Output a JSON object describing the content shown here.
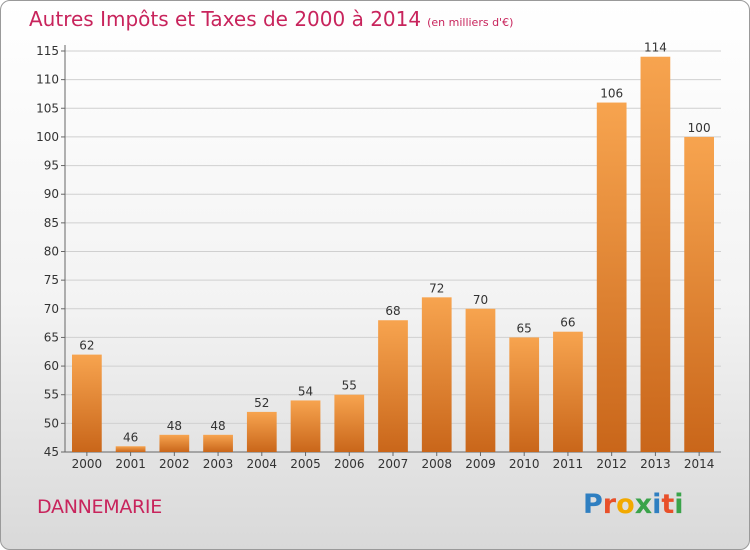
{
  "header": {
    "title": "Autres Impôts et Taxes de 2000 à 2014",
    "subtitle": "(en milliers d'€)"
  },
  "footer": {
    "commune": "DANNEMARIE",
    "logo_letters": [
      "P",
      "r",
      "o",
      "x",
      "i",
      "t",
      "i"
    ],
    "logo_colors": [
      "#2f7fc1",
      "#e8502a",
      "#f2a900",
      "#3aa34a",
      "#2f7fc1",
      "#e8502a",
      "#3aa34a"
    ]
  },
  "chart_data": {
    "type": "bar",
    "title": "Autres Impôts et Taxes de 2000 à 2014",
    "subtitle": "(en milliers d'€)",
    "xlabel": "",
    "ylabel": "",
    "categories": [
      "2000",
      "2001",
      "2002",
      "2003",
      "2004",
      "2005",
      "2006",
      "2007",
      "2008",
      "2009",
      "2010",
      "2011",
      "2012",
      "2013",
      "2014"
    ],
    "values": [
      62,
      46,
      48,
      48,
      52,
      54,
      55,
      68,
      72,
      70,
      65,
      66,
      106,
      114,
      100
    ],
    "ylim": [
      45,
      115
    ],
    "yticks": [
      45,
      50,
      55,
      60,
      65,
      70,
      75,
      80,
      85,
      90,
      95,
      100,
      105,
      110,
      115
    ],
    "grid": true,
    "data_labels": true,
    "bar_color": "#f0923a"
  }
}
